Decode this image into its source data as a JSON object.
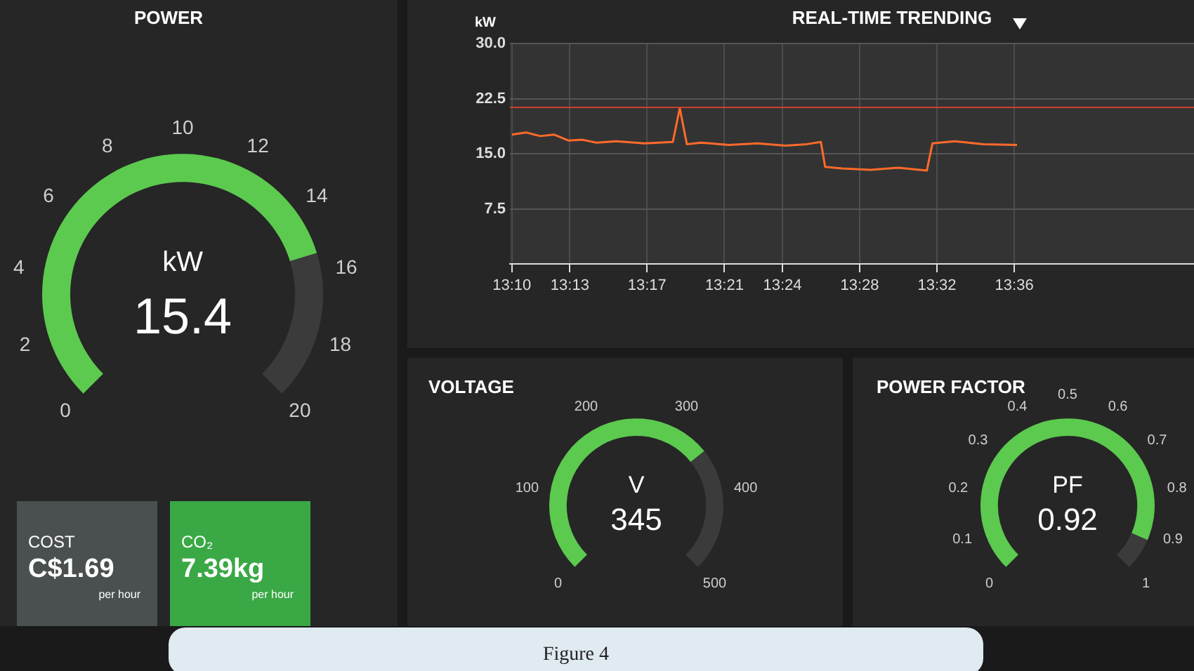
{
  "chart_data": [
    {
      "type": "donut",
      "title": "POWER",
      "ylabel": "kW",
      "categories": [
        null,
        null
      ],
      "values": [
        77,
        23
      ],
      "colors": [
        "#5cc94f",
        "#3b3b3b"
      ],
      "annotations": [
        "0",
        "2",
        "4",
        "6",
        "8",
        "10",
        "12",
        "14",
        "16",
        "18",
        "20",
        "15.4"
      ]
    },
    {
      "type": "line",
      "title": "REAL-TIME TRENDING",
      "ylabel": "kW",
      "x": [
        13.1667,
        13.1789,
        13.191,
        13.2032,
        13.2154,
        13.2276,
        13.2397,
        13.2568,
        13.2811,
        13.3055,
        13.3115,
        13.3176,
        13.3298,
        13.3541,
        13.3785,
        13.4028,
        13.4211,
        13.4332,
        13.4369,
        13.4515,
        13.4759,
        13.5002,
        13.5246,
        13.5294,
        13.5489,
        13.5733,
        13.6024
      ],
      "series": [
        {
          "color": "#ff6a2b",
          "values": [
            17.6,
            17.9,
            17.4,
            17.6,
            16.8,
            16.9,
            16.5,
            16.7,
            16.4,
            16.6,
            21.2,
            16.3,
            16.5,
            16.2,
            16.4,
            16.1,
            16.3,
            16.6,
            13.2,
            13.0,
            12.8,
            13.1,
            12.7,
            16.4,
            16.7,
            16.3,
            16.2
          ]
        }
      ],
      "xlim": [
        13.165,
        13.755
      ],
      "xticks": [
        {
          "value": 13.1667,
          "label": "13:10"
        },
        {
          "value": 13.2167,
          "label": "13:13"
        },
        {
          "value": 13.2833,
          "label": "13:17"
        },
        {
          "value": 13.35,
          "label": "13:21"
        },
        {
          "value": 13.4,
          "label": "13:24"
        },
        {
          "value": 13.4667,
          "label": "13:28"
        },
        {
          "value": 13.5333,
          "label": "13:32"
        },
        {
          "value": 13.6,
          "label": "13:36"
        }
      ],
      "ylim": [
        0,
        30
      ],
      "yticks": [
        {
          "value": 7.5,
          "label": "7.5"
        },
        {
          "value": 15,
          "label": "15.0"
        },
        {
          "value": 22.5,
          "label": "22.5"
        },
        {
          "value": 30,
          "label": "30.0"
        }
      ],
      "ref_lines": [
        {
          "axis": "y",
          "value": 21.3,
          "color": "#c8412e"
        }
      ],
      "grid": true,
      "legend": false,
      "marker": "none",
      "line_style": "solid",
      "annotations": [
        "Figure 4"
      ]
    },
    {
      "type": "other",
      "title": "COST",
      "annotations": [
        "C$1.69",
        "per hour"
      ],
      "color": "#4a4f4f"
    },
    {
      "type": "other",
      "title": "CO₂",
      "annotations": [
        "7.39kg",
        "per hour"
      ],
      "color": "#3aa845"
    },
    {
      "type": "donut",
      "title": "VOLTAGE",
      "ylabel": "V",
      "categories": [
        null,
        null
      ],
      "values": [
        69,
        31
      ],
      "colors": [
        "#5cc94f",
        "#3b3b3b"
      ],
      "annotations": [
        "0",
        "100",
        "200",
        "300",
        "400",
        "500",
        "345"
      ]
    },
    {
      "type": "donut",
      "title": "POWER FACTOR",
      "ylabel": "PF",
      "categories": [
        null,
        null
      ],
      "values": [
        92,
        8
      ],
      "colors": [
        "#5cc94f",
        "#3b3b3b"
      ],
      "annotations": [
        "0",
        "0.1",
        "0.2",
        "0.3",
        "0.4",
        "0.5",
        "0.6",
        "0.7",
        "0.8",
        "0.9",
        "1",
        "0.92"
      ]
    }
  ]
}
